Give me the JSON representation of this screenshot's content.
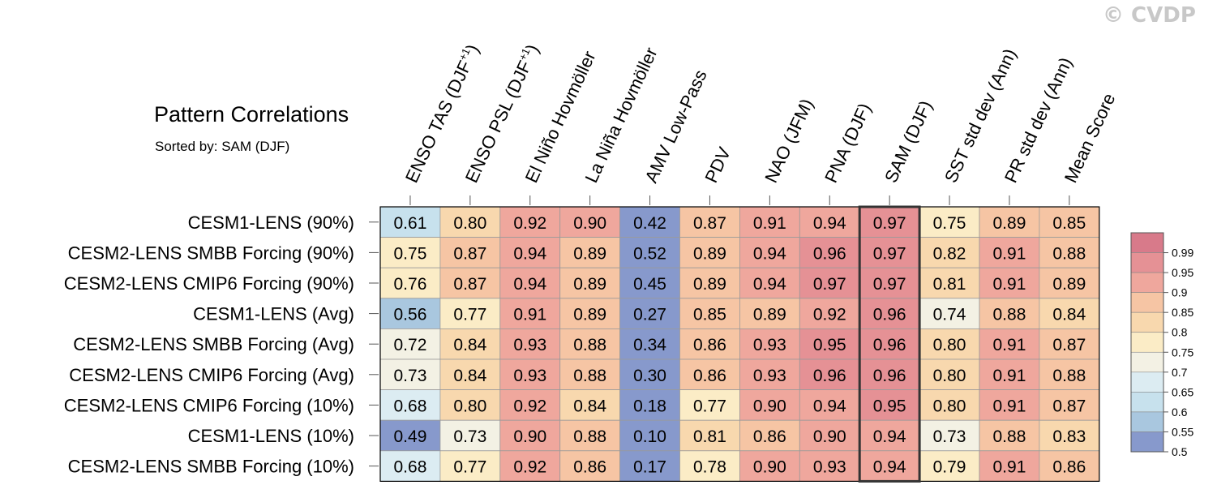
{
  "watermark": "© CVDP",
  "chart_data": {
    "type": "heatmap",
    "title": "Pattern Correlations",
    "subtitle": "Sorted by: SAM (DJF)",
    "columns": [
      {
        "label": "ENSO TAS (DJF",
        "sup": "+1",
        "tail": ")"
      },
      {
        "label": "ENSO PSL (DJF",
        "sup": "+1",
        "tail": ")"
      },
      {
        "label": "El Niño Hovmöller",
        "sup": "",
        "tail": ""
      },
      {
        "label": "La Niña Hovmöller",
        "sup": "",
        "tail": ""
      },
      {
        "label": "AMV Low-Pass",
        "sup": "",
        "tail": ""
      },
      {
        "label": "PDV",
        "sup": "",
        "tail": ""
      },
      {
        "label": "NAO (JFM)",
        "sup": "",
        "tail": ""
      },
      {
        "label": "PNA (DJF)",
        "sup": "",
        "tail": ""
      },
      {
        "label": "SAM (DJF)",
        "sup": "",
        "tail": ""
      },
      {
        "label": "SST std dev (Ann)",
        "sup": "",
        "tail": ""
      },
      {
        "label": "PR std dev (Ann)",
        "sup": "",
        "tail": ""
      },
      {
        "label": "Mean Score",
        "sup": "",
        "tail": ""
      }
    ],
    "rows": [
      "CESM1-LENS (90%)",
      "CESM2-LENS SMBB Forcing (90%)",
      "CESM2-LENS CMIP6 Forcing (90%)",
      "CESM1-LENS (Avg)",
      "CESM2-LENS SMBB Forcing (Avg)",
      "CESM2-LENS CMIP6 Forcing (Avg)",
      "CESM2-LENS CMIP6 Forcing (10%)",
      "CESM1-LENS (10%)",
      "CESM2-LENS SMBB Forcing (10%)"
    ],
    "values": [
      [
        0.61,
        0.8,
        0.92,
        0.9,
        0.42,
        0.87,
        0.91,
        0.94,
        0.97,
        0.75,
        0.89,
        0.85
      ],
      [
        0.75,
        0.87,
        0.94,
        0.89,
        0.52,
        0.89,
        0.94,
        0.96,
        0.97,
        0.82,
        0.91,
        0.88
      ],
      [
        0.76,
        0.87,
        0.94,
        0.89,
        0.45,
        0.89,
        0.94,
        0.97,
        0.97,
        0.81,
        0.91,
        0.89
      ],
      [
        0.56,
        0.77,
        0.91,
        0.89,
        0.27,
        0.85,
        0.89,
        0.92,
        0.96,
        0.74,
        0.88,
        0.84
      ],
      [
        0.72,
        0.84,
        0.93,
        0.88,
        0.34,
        0.86,
        0.93,
        0.95,
        0.96,
        0.8,
        0.91,
        0.87
      ],
      [
        0.73,
        0.84,
        0.93,
        0.88,
        0.3,
        0.86,
        0.93,
        0.96,
        0.96,
        0.8,
        0.91,
        0.88
      ],
      [
        0.68,
        0.8,
        0.92,
        0.84,
        0.18,
        0.77,
        0.9,
        0.94,
        0.95,
        0.8,
        0.91,
        0.87
      ],
      [
        0.49,
        0.73,
        0.9,
        0.88,
        0.1,
        0.81,
        0.86,
        0.9,
        0.94,
        0.73,
        0.88,
        0.83
      ],
      [
        0.68,
        0.77,
        0.92,
        0.86,
        0.17,
        0.78,
        0.9,
        0.93,
        0.94,
        0.79,
        0.91,
        0.86
      ]
    ],
    "highlighted_column": "SAM (DJF)",
    "colorbar": {
      "levels": [
        "0.99",
        "0.95",
        "0.9",
        "0.85",
        "0.8",
        "0.75",
        "0.7",
        "0.65",
        "0.6",
        "0.55",
        "0.5"
      ],
      "colors": [
        "#d87a8a",
        "#e59195",
        "#efa79d",
        "#f6c5a4",
        "#f8d8ae",
        "#fbecc6",
        "#f3f1e4",
        "#dcecf2",
        "#c7e1ed",
        "#a9c7df",
        "#8799cc"
      ]
    }
  }
}
